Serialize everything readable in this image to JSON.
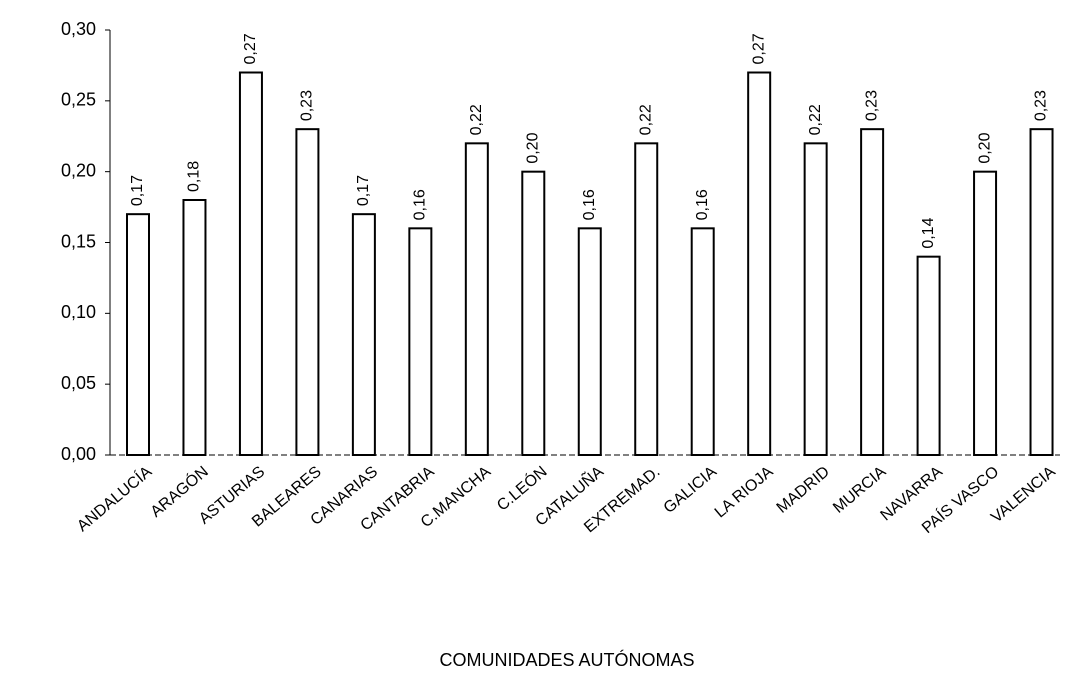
{
  "chart_data": {
    "type": "bar",
    "x_label": "COMUNIDADES AUTÓNOMAS",
    "categories": [
      "ANDALUCÍA",
      "ARAGÓN",
      "ASTURIAS",
      "BALEARES",
      "CANARIAS",
      "CANTABRIA",
      "C.MANCHA",
      "C.LEÓN",
      "CATALUÑA",
      "EXTREMAD.",
      "GALICIA",
      "LA RIOJA",
      "MADRID",
      "MURCIA",
      "NAVARRA",
      "PAÍS VASCO",
      "VALENCIA"
    ],
    "values": [
      0.17,
      0.18,
      0.27,
      0.23,
      0.17,
      0.16,
      0.22,
      0.2,
      0.16,
      0.22,
      0.16,
      0.27,
      0.22,
      0.23,
      0.14,
      0.2,
      0.23
    ],
    "value_labels": [
      "0,17",
      "0,18",
      "0,27",
      "0,23",
      "0,17",
      "0,16",
      "0,22",
      "0,20",
      "0,16",
      "0,22",
      "0,16",
      "0,27",
      "0,22",
      "0,23",
      "0,14",
      "0,20",
      "0,23"
    ],
    "color": "#ffffff",
    "ylim": [
      0,
      0.3
    ],
    "yticks": [
      {
        "value": 0,
        "label": "0,00"
      },
      {
        "value": 0.05,
        "label": "0,05"
      },
      {
        "value": 0.1,
        "label": "0,10"
      },
      {
        "value": 0.15,
        "label": "0,15"
      },
      {
        "value": 0.2,
        "label": "0,20"
      },
      {
        "value": 0.25,
        "label": "0,25"
      },
      {
        "value": 0.3,
        "label": "0,30"
      }
    ],
    "grid": false
  }
}
